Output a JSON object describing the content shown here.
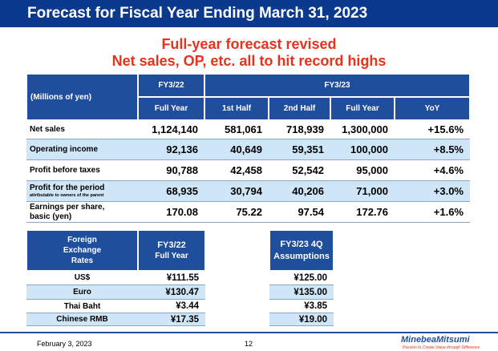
{
  "header": {
    "title": "Forecast for Fiscal Year Ending March 31, 2023"
  },
  "subtitle": [
    "Full-year forecast revised",
    "Net sales, OP, etc. all to hit record highs"
  ],
  "results_table": {
    "unit": "(Millions of yen)",
    "groups": [
      "FY3/22",
      "FY3/23"
    ],
    "columns": [
      "Full Year",
      "1st Half",
      "2nd Half",
      "Full Year",
      "YoY"
    ],
    "rows": [
      {
        "label": "Net sales",
        "values": [
          "1,124,140",
          "581,061",
          "718,939",
          "1,300,000",
          "+15.6%"
        ]
      },
      {
        "label": "Operating income",
        "values": [
          "92,136",
          "40,649",
          "59,351",
          "100,000",
          "+8.5%"
        ]
      },
      {
        "label": "Profit before taxes",
        "values": [
          "90,788",
          "42,458",
          "52,542",
          "95,000",
          "+4.6%"
        ]
      },
      {
        "label": "Profit for the period",
        "note": "attributable to owners of the parent",
        "values": [
          "68,935",
          "30,794",
          "40,206",
          "71,000",
          "+3.0%"
        ]
      },
      {
        "label": "Earnings per share, basic (yen)",
        "values": [
          "170.08",
          "75.22",
          "97.54",
          "172.76",
          "+1.6%"
        ]
      }
    ]
  },
  "fx_table": {
    "header": "Foreign Exchange Rates",
    "group": "FY3/22",
    "column": "Full Year",
    "rows": [
      {
        "label": "US$",
        "value": "¥111.55"
      },
      {
        "label": "Euro",
        "value": "¥130.47"
      },
      {
        "label": "Thai Baht",
        "value": "¥3.44"
      },
      {
        "label": "Chinese RMB",
        "value": "¥17.35"
      }
    ]
  },
  "assumptions_table": {
    "header": "FY3/23 4Q Assumptions",
    "values": [
      "¥125.00",
      "¥135.00",
      "¥3.85",
      "¥19.00"
    ]
  },
  "footer": {
    "date": "February 3, 2023",
    "page": "12",
    "logo": "MinebeaMitsumi",
    "tagline": "Passion to Create Value through Difference"
  }
}
